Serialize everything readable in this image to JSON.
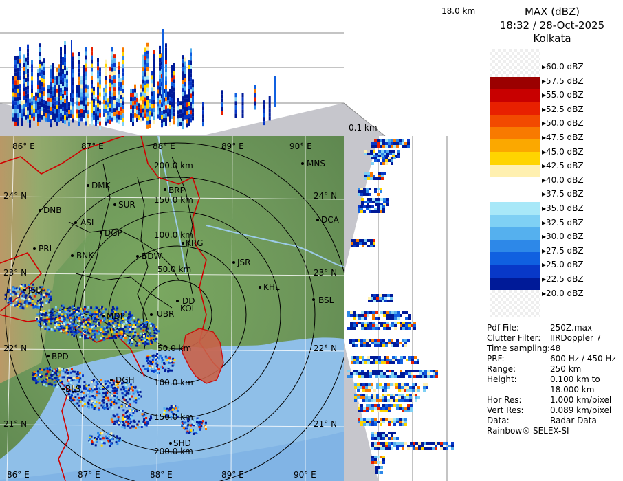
{
  "top_scale": {
    "top_label": "18.0 km",
    "bottom_label": "0.1 km"
  },
  "header": {
    "product": "MAX (dBZ)",
    "datetime": "18:32 / 28-Oct-2025",
    "site": "Kolkata"
  },
  "legend": {
    "levels": [
      "60.0 dBZ",
      "57.5 dBZ",
      "55.0 dBZ",
      "52.5 dBZ",
      "50.0 dBZ",
      "47.5 dBZ",
      "45.0 dBZ",
      "42.5 dBZ",
      "40.0 dBZ",
      "37.5 dBZ",
      "35.0 dBZ",
      "32.5 dBZ",
      "30.0 dBZ",
      "27.5 dBZ",
      "25.0 dBZ",
      "22.5 dBZ",
      "20.0 dBZ"
    ],
    "colors": [
      "#9b0000",
      "#c80000",
      "#e82000",
      "#f24a00",
      "#f87a00",
      "#fba800",
      "#ffd400",
      "#fff0b0",
      "#ffffff",
      "#ffffff",
      "#a8e8f8",
      "#7fd0f4",
      "#55b0ee",
      "#2d88e8",
      "#1060e0",
      "#0838c8",
      "#001a98"
    ]
  },
  "info": [
    {
      "k": "Pdf File:",
      "v": "250Z.max"
    },
    {
      "k": "Clutter Filter:",
      "v": "IIRDoppler 7"
    },
    {
      "k": "Time sampling:",
      "v": "48"
    },
    {
      "k": "PRF:",
      "v": "600 Hz / 450 Hz"
    },
    {
      "k": "Range:",
      "v": "250 km"
    },
    {
      "k": "Height:",
      "v": "0.100 km to"
    },
    {
      "k": "",
      "v": "18.000 km"
    },
    {
      "k": "Hor Res:",
      "v": "1.000 km/pixel"
    },
    {
      "k": "Vert Res:",
      "v": "0.089 km/pixel"
    },
    {
      "k": "Data:",
      "v": "Radar Data"
    }
  ],
  "brand": "Rainbow® SELEX-SI",
  "map": {
    "lon_labels": [
      "86° E",
      "87° E",
      "88° E",
      "89° E",
      "90° E"
    ],
    "lat_labels": [
      "24° N",
      "23° N",
      "22° N",
      "21° N"
    ],
    "ring_labels": [
      "200.0 km",
      "150.0 km",
      "100.0 km",
      "50.0 km",
      "50.0 km",
      "100.0 km",
      "150.0 km",
      "200.0 km"
    ],
    "stations": [
      "MNS",
      "DMK",
      "BRP",
      "DNB",
      "SUR",
      "ASL",
      "DGP",
      "DCA",
      "PRL",
      "KRG",
      "BNK",
      "BDW",
      "JSR",
      "JSD",
      "KHL",
      "DD",
      "KOL",
      "BSL",
      "MDP",
      "UBR",
      "BPD",
      "DGH",
      "BLS",
      "SHD"
    ]
  },
  "colors": {
    "land_green": "#6c9a5e",
    "sea": "#8fbfe8",
    "border_red": "#d00000",
    "panel_gray": "#c6c6cc"
  }
}
